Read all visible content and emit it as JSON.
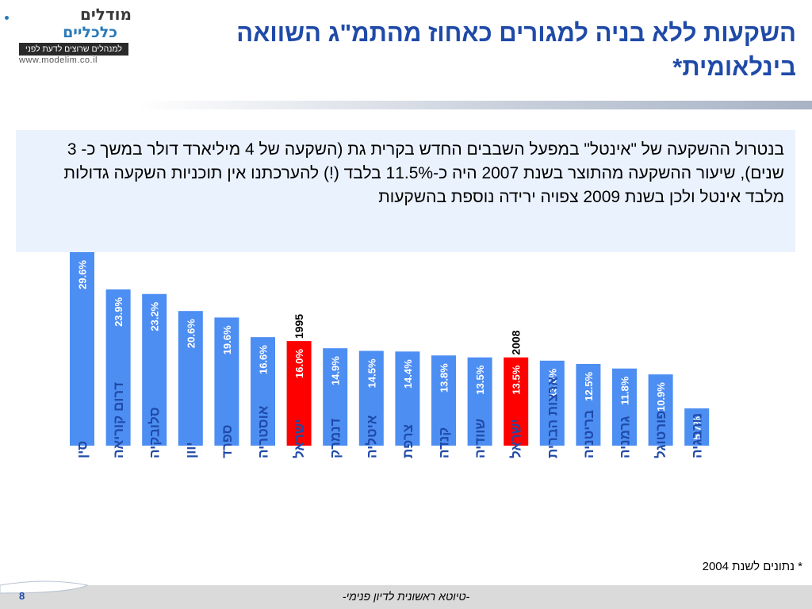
{
  "logo": {
    "brand_line1": "מודלים",
    "brand_line2": "כלכליים",
    "tagline": "למנהלים שרוצים לדעת לפני",
    "url": "www.modelim.co.il"
  },
  "title": "השקעות ללא בניה למגורים כאחוז מהתמ\"ג השוואה בינלאומית*",
  "text_box": "בנטרול ההשקעה של \"אינטל\" במפעל השבבים החדש בקרית גת (השקעה של 4 מיליארד דולר במשך כ- 3 שנים), שיעור ההשקעה מהתוצר בשנת 2007 היה כ-11.5% בלבד (!) להערכתנו אין תוכניות השקעה גדולות מלבד אינטל ולכן בשנת 2009 צפויה ירידה נוספת בהשקעות",
  "colors": {
    "bar": "#4d8ef3",
    "highlight": "#ff0000",
    "title": "#1f4aa8",
    "text_box_bg": "#eaf2fd"
  },
  "chart_data": {
    "type": "bar",
    "categories": [
      "סין",
      "דרום קוריאה",
      "סלובקיה",
      "יוון",
      "ספרד",
      "אוסטריה",
      "ישראל",
      "דנמרק",
      "איטליה",
      "צרפת",
      "קנדה",
      "שוודיה",
      "ישראל",
      "ארצות הברית",
      "בריטניה",
      "גרמניה",
      "פורטוגל",
      "נורבגיה"
    ],
    "values": [
      29.6,
      23.9,
      23.2,
      20.6,
      19.6,
      16.6,
      16.0,
      14.9,
      14.5,
      14.4,
      13.8,
      13.5,
      13.5,
      13.0,
      12.5,
      11.8,
      10.9,
      5.7
    ],
    "value_labels": [
      "29.6%",
      "23.9%",
      "23.2%",
      "20.6%",
      "19.6%",
      "16.6%",
      "16.0%",
      "14.9%",
      "14.5%",
      "14.4%",
      "13.8%",
      "13.5%",
      "13.5%",
      "13.0%",
      "12.5%",
      "11.8%",
      "10.9%",
      "5.7%"
    ],
    "highlighted": [
      6,
      12
    ],
    "annotations": [
      {
        "index": 6,
        "text": "1995"
      },
      {
        "index": 12,
        "text": "2008"
      }
    ]
  },
  "footnote": "* נתונים לשנת 2004",
  "footer": {
    "text": "-טיוטא ראשונית לדיון פנימי-",
    "page_number": "8"
  }
}
